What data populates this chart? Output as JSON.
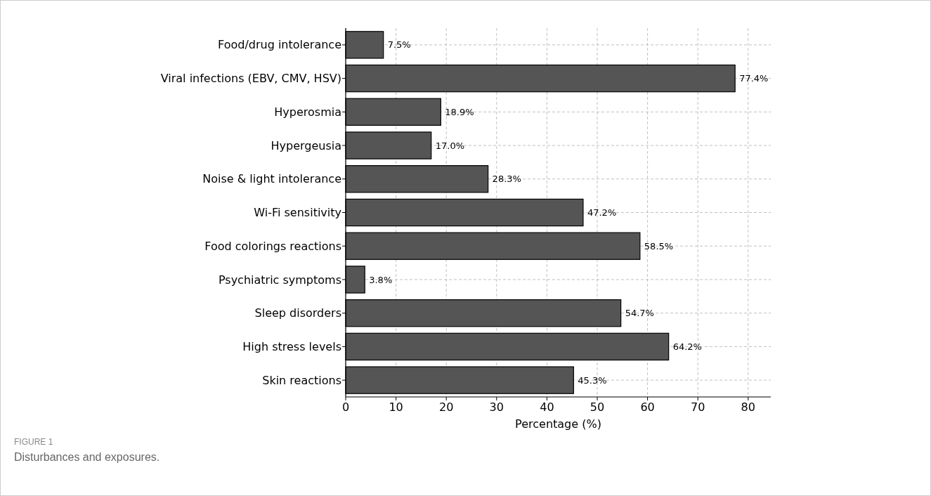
{
  "chart_data": {
    "type": "bar",
    "orientation": "horizontal",
    "xlabel": "Percentage (%)",
    "categories": [
      "Food/drug intolerance",
      "Viral infections (EBV, CMV, HSV)",
      "Hyperosmia",
      "Hypergeusia",
      "Noise & light intolerance",
      "Wi-Fi sensitivity",
      "Food colorings reactions",
      "Psychiatric symptoms",
      "Sleep disorders",
      "High stress levels",
      "Skin reactions"
    ],
    "values": [
      7.5,
      77.4,
      18.9,
      17.0,
      28.3,
      47.2,
      58.5,
      3.8,
      54.7,
      64.2,
      45.3
    ],
    "value_labels": [
      "7.5%",
      "77.4%",
      "18.9%",
      "17.0%",
      "28.3%",
      "47.2%",
      "58.5%",
      "3.8%",
      "54.7%",
      "64.2%",
      "45.3%"
    ],
    "color": "#555555",
    "xlim": [
      0,
      84.5
    ],
    "xticks": [
      0,
      10,
      20,
      30,
      40,
      50,
      60,
      70,
      80
    ],
    "grid": true,
    "annotations": [
      "FIGURE 1",
      "Disturbances and exposures."
    ]
  }
}
